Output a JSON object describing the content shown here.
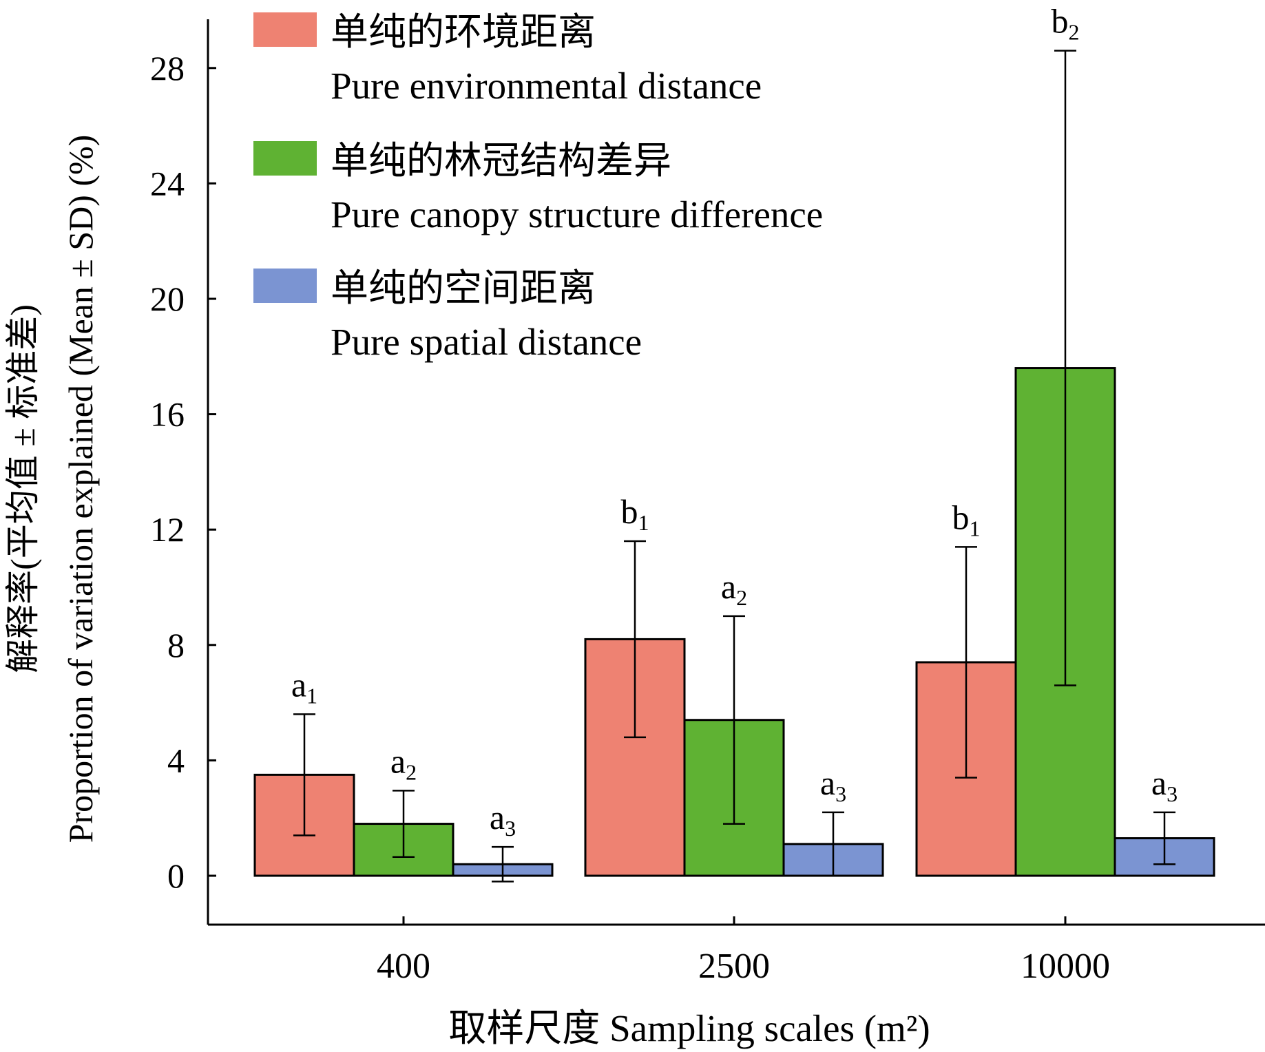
{
  "chart_data": {
    "type": "bar",
    "xlabel": "取样尺度 Sampling scales (m²)",
    "ylabel_cn": "解释率(平均值 ± 标准差)",
    "ylabel_en": "Proportion of variation explained (Mean ± SD) (%)",
    "ylim": [
      -1.7,
      30
    ],
    "yticks": [
      0,
      4,
      8,
      12,
      16,
      20,
      24,
      28
    ],
    "categories": [
      "400",
      "2500",
      "10000"
    ],
    "legend_position": "top-left",
    "series": [
      {
        "name_cn": "单纯的环境距离",
        "name_en": "Pure environmental distance",
        "color": "#ee8272",
        "values": [
          3.5,
          8.2,
          7.4
        ],
        "sd": [
          2.1,
          3.4,
          4.0
        ],
        "labels": [
          {
            "letter": "a",
            "sub": "1"
          },
          {
            "letter": "b",
            "sub": "1"
          },
          {
            "letter": "b",
            "sub": "1"
          }
        ]
      },
      {
        "name_cn": "单纯的林冠结构差异",
        "name_en": "Pure canopy structure difference",
        "color": "#5fb233",
        "values": [
          1.8,
          5.4,
          17.6
        ],
        "sd": [
          1.15,
          3.6,
          11.0
        ],
        "labels": [
          {
            "letter": "a",
            "sub": "2"
          },
          {
            "letter": "a",
            "sub": "2"
          },
          {
            "letter": "b",
            "sub": "2"
          }
        ]
      },
      {
        "name_cn": "单纯的空间距离",
        "name_en": "Pure spatial distance",
        "color": "#7b94d2",
        "values": [
          0.4,
          1.1,
          1.3
        ],
        "sd": [
          0.6,
          1.1,
          0.9
        ],
        "labels": [
          {
            "letter": "a",
            "sub": "3"
          },
          {
            "letter": "a",
            "sub": "3"
          },
          {
            "letter": "a",
            "sub": "3"
          }
        ]
      }
    ]
  }
}
